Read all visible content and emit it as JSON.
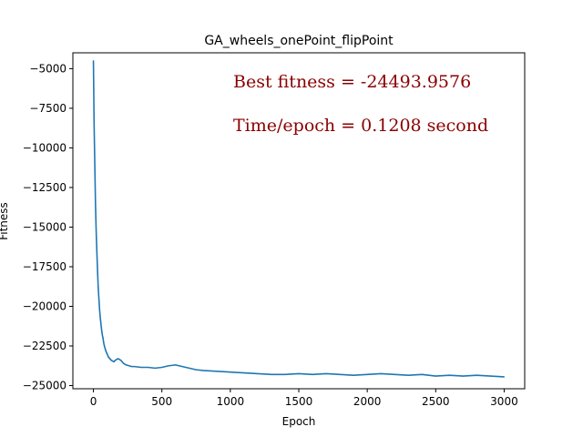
{
  "chart_data": {
    "type": "line",
    "title": "GA_wheels_onePoint_flipPoint",
    "xlabel": "Epoch",
    "ylabel": "Fitness",
    "xlim": [
      -150,
      3150
    ],
    "ylim": [
      -25200,
      -4000
    ],
    "xticks": [
      0,
      500,
      1000,
      1500,
      2000,
      2500,
      3000
    ],
    "yticks": [
      -5000,
      -7500,
      -10000,
      -12500,
      -15000,
      -17500,
      -20000,
      -22500,
      -25000
    ],
    "grid": false,
    "series": [
      {
        "color": "#1f77b4",
        "x": [
          0,
          5,
          10,
          15,
          20,
          25,
          30,
          35,
          40,
          45,
          50,
          55,
          60,
          65,
          70,
          75,
          80,
          90,
          100,
          110,
          120,
          130,
          140,
          150,
          160,
          170,
          180,
          200,
          220,
          240,
          260,
          280,
          300,
          350,
          400,
          450,
          500,
          550,
          600,
          650,
          700,
          750,
          800,
          900,
          1000,
          1100,
          1200,
          1300,
          1400,
          1500,
          1600,
          1700,
          1800,
          1900,
          2000,
          2100,
          2200,
          2300,
          2400,
          2500,
          2600,
          2700,
          2800,
          2900,
          3000
        ],
        "y": [
          -4500,
          -8500,
          -11000,
          -13500,
          -15200,
          -16500,
          -17700,
          -18800,
          -19500,
          -20200,
          -20700,
          -21100,
          -21500,
          -21800,
          -22000,
          -22300,
          -22500,
          -22800,
          -23000,
          -23200,
          -23300,
          -23400,
          -23450,
          -23500,
          -23400,
          -23350,
          -23300,
          -23400,
          -23600,
          -23700,
          -23750,
          -23800,
          -23800,
          -23850,
          -23850,
          -23900,
          -23850,
          -23750,
          -23700,
          -23800,
          -23900,
          -24000,
          -24050,
          -24100,
          -24150,
          -24200,
          -24250,
          -24300,
          -24300,
          -24250,
          -24300,
          -24250,
          -24300,
          -24350,
          -24300,
          -24250,
          -24300,
          -24350,
          -24300,
          -24400,
          -24350,
          -24400,
          -24350,
          -24400,
          -24450
        ]
      }
    ],
    "annotations": [
      "Best fitness = -24493.9576",
      "Time/epoch = 0.1208 second"
    ],
    "annotation_color": "#8b0000"
  }
}
